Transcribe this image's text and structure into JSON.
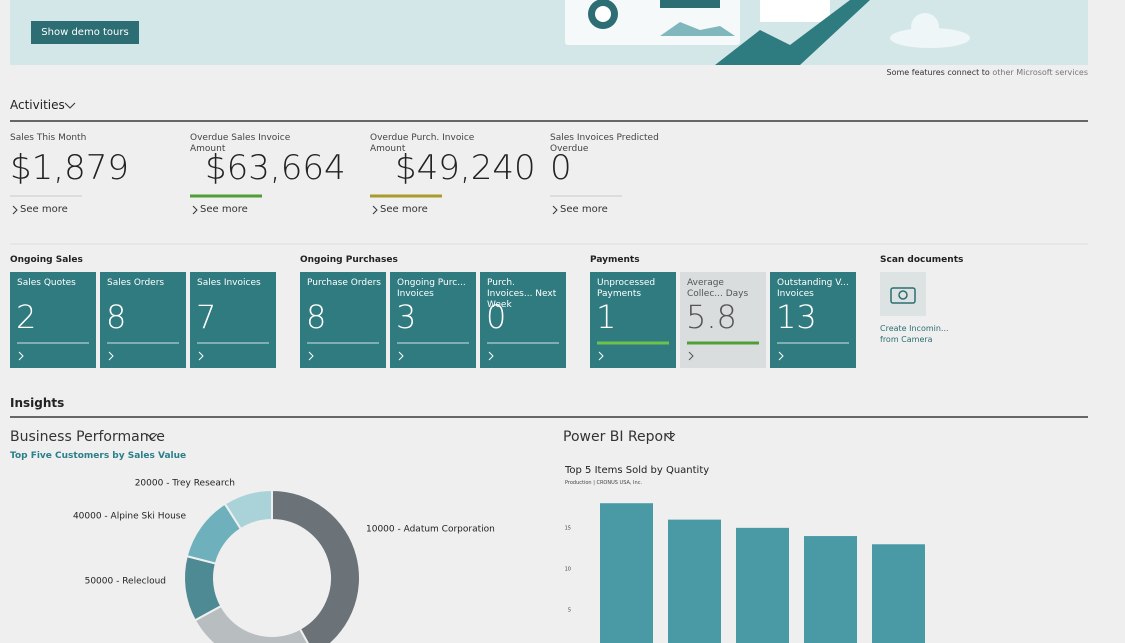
{
  "banner": {
    "button": "Show demo tours",
    "note": "Some features connect to",
    "note_link": "other Microsoft services"
  },
  "activities": {
    "title": "Activities",
    "kpis": [
      {
        "label": "Sales This Month",
        "value": "$1,879",
        "link": "See more",
        "accent": "#c8c8c8"
      },
      {
        "label": "Overdue Sales Invoice Amount",
        "value": "$63,664",
        "link": "See more",
        "accent": "#4f9e36"
      },
      {
        "label": "Overdue Purch. Invoice Amount",
        "value": "$49,240",
        "link": "See more",
        "accent": "#a89b2a"
      },
      {
        "label": "Sales Invoices Predicted Overdue",
        "value": "0",
        "link": "See more",
        "accent": "#c8c8c8"
      }
    ]
  },
  "cues": [
    {
      "title": "Ongoing Sales",
      "tiles": [
        {
          "label": "Sales Quotes",
          "value": "2"
        },
        {
          "label": "Sales Orders",
          "value": "8"
        },
        {
          "label": "Sales Invoices",
          "value": "7"
        }
      ]
    },
    {
      "title": "Ongoing Purchases",
      "tiles": [
        {
          "label": "Purchase Orders",
          "value": "8"
        },
        {
          "label": "Ongoing Purc... Invoices",
          "value": "3"
        },
        {
          "label": "Purch. Invoices... Next Week",
          "value": "0"
        }
      ]
    },
    {
      "title": "Payments",
      "tiles": [
        {
          "label": "Unprocessed Payments",
          "value": "1",
          "indicator": "#6cc24a"
        },
        {
          "label": "Average Collec... Days",
          "value": "5.8",
          "indicator": "#4f9e36",
          "background": "#d9dddd"
        },
        {
          "label": "Outstanding V... Invoices",
          "value": "13"
        }
      ]
    }
  ],
  "scan": {
    "title": "Scan documents",
    "action": [
      "Create Incomin...",
      "from Camera"
    ]
  },
  "insights": {
    "title": "Insights",
    "left_title": "Business Performance",
    "right_title": "Power BI Report"
  },
  "chart_data": [
    {
      "type": "pie",
      "title": "Top Five Customers by Sales Value",
      "categories": [
        "10000 - Adatum Corporation",
        null,
        "50000 - Relecloud",
        "40000 - Alpine Ski House",
        "20000 - Trey Research"
      ],
      "values": [
        42,
        25,
        12,
        12,
        9
      ],
      "colors": [
        "#6b7378",
        "#b8bdbf",
        "#4e8a93",
        "#6fb0bd",
        "#a9d3d8"
      ]
    },
    {
      "type": "bar",
      "title": "Top 5 Items Sold by Quantity",
      "subtitle": "Production | CRONUS USA, Inc.",
      "categories": [
        null,
        null,
        null,
        null,
        null
      ],
      "values": [
        18,
        16,
        15,
        14,
        13
      ],
      "color": "#4a9aa6",
      "ylim": [
        0,
        19
      ],
      "yticks": [
        5,
        10,
        15
      ]
    }
  ]
}
